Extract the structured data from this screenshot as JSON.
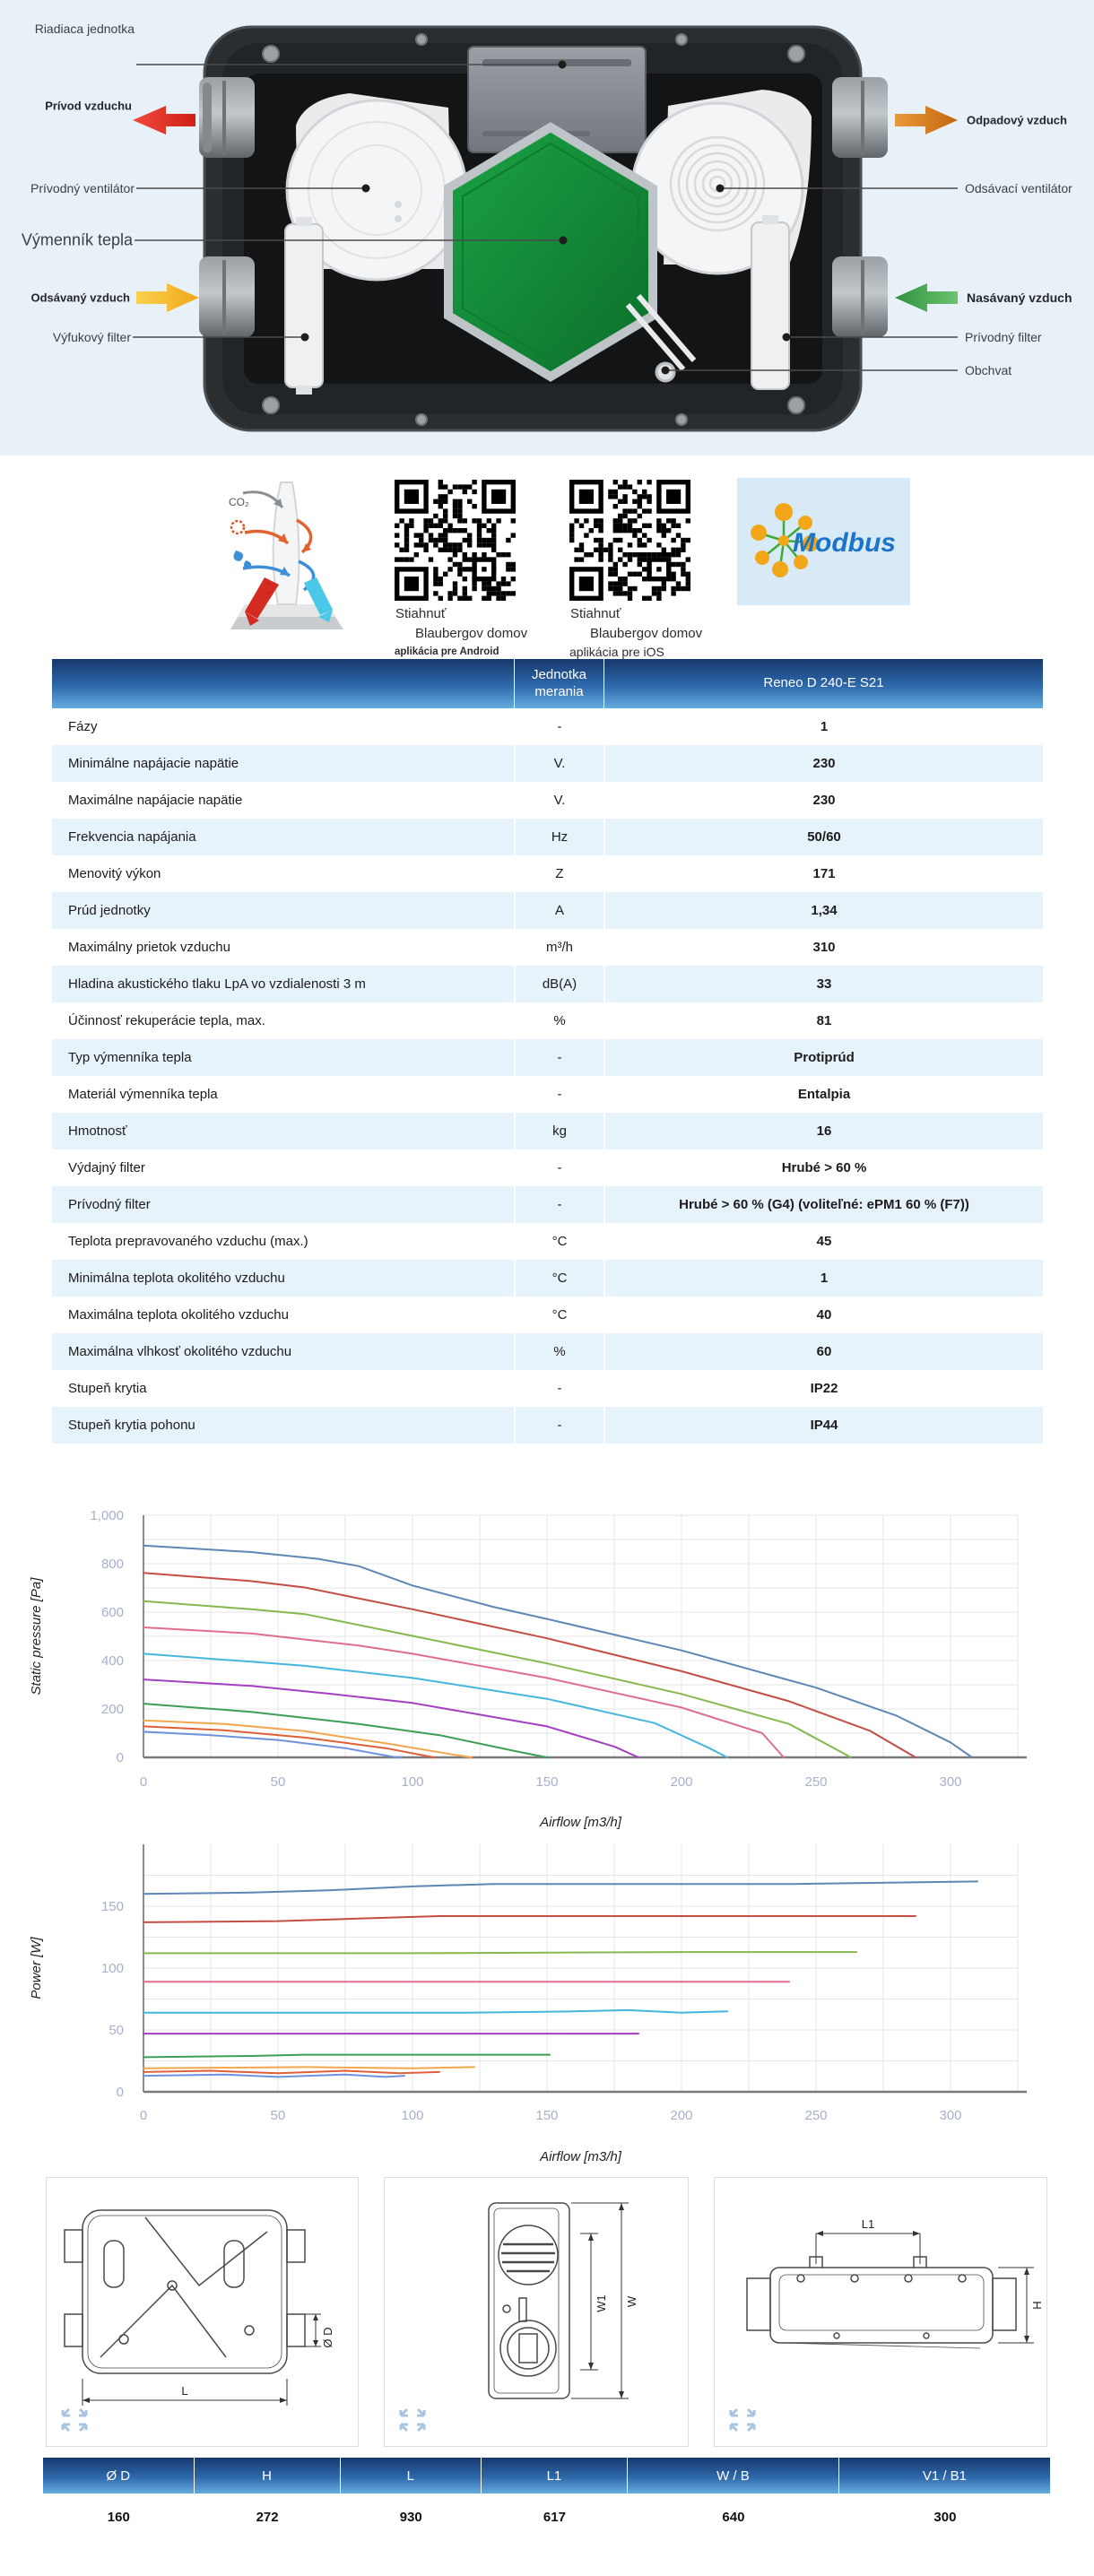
{
  "colors": {
    "hero_bg": "#e9f1f8",
    "table_header_top": "#16386c",
    "table_header_bottom": "#65acde",
    "row_alt": "#e7f3fb",
    "arrow_supply": "#e03026",
    "arrow_waste": "#d97c1e",
    "arrow_extract": "#f6bf2f",
    "arrow_intake": "#53b054",
    "exchanger_green": "#15923a",
    "tick_label": "#a7b0cb",
    "grid_line": "#e4e4e4"
  },
  "hero": {
    "left_labels": {
      "control_unit": "Riadiaca jednotka",
      "supply_air": "Prívod vzduchu",
      "supply_fan": "Prívodný ventilátor",
      "heat_exchanger": "Výmenník tepla",
      "extract_air": "Odsávaný vzduch",
      "exhaust_filter": "Výfukový filter"
    },
    "right_labels": {
      "waste_air": "Odpadový vzduch",
      "extract_fan": "Odsávací ventilátor",
      "intake_air": "Nasávaný vzduch",
      "supply_filter": "Prívodný filter",
      "bypass": "Obchvat"
    }
  },
  "apps": {
    "co2": "CO₂",
    "modbus": "Modbus",
    "qr_android": {
      "line1": "Stiahnuť",
      "line2": "Blaubergov domov",
      "line3": "aplikácia pre Android"
    },
    "qr_ios": {
      "line1": "Stiahnuť",
      "line2": "Blaubergov domov",
      "line3": "aplikácia pre iOS"
    }
  },
  "spec_table": {
    "header_param": "",
    "header_unit": "Jednotka merania",
    "header_model": "Reneo D 240-E S21",
    "rows": [
      {
        "p": "Fázy",
        "u": "-",
        "v": "1"
      },
      {
        "p": "Minimálne napájacie napätie",
        "u": "V.",
        "v": "230"
      },
      {
        "p": "Maximálne napájacie napätie",
        "u": "V.",
        "v": "230"
      },
      {
        "p": "Frekvencia napájania",
        "u": "Hz",
        "v": "50/60"
      },
      {
        "p": "Menovitý výkon",
        "u": "Z",
        "v": "171"
      },
      {
        "p": "Prúd jednotky",
        "u": "A",
        "v": "1,34"
      },
      {
        "p": "Maximálny prietok vzduchu",
        "u": "m³/h",
        "v": "310"
      },
      {
        "p": "Hladina akustického tlaku LpA vo vzdialenosti 3 m",
        "u": "dB(A)",
        "v": "33"
      },
      {
        "p": "Účinnosť rekuperácie tepla, max.",
        "u": "%",
        "v": "81"
      },
      {
        "p": "Typ výmenníka tepla",
        "u": "-",
        "v": "Protiprúd"
      },
      {
        "p": "Materiál výmenníka tepla",
        "u": "-",
        "v": "Entalpia"
      },
      {
        "p": "Hmotnosť",
        "u": "kg",
        "v": "16"
      },
      {
        "p": "Výdajný filter",
        "u": "-",
        "v": "Hrubé > 60 %"
      },
      {
        "p": "Prívodný filter",
        "u": "-",
        "v": "Hrubé > 60 % (G4) (voliteľné: ePM1 60 % (F7))"
      },
      {
        "p": "Teplota prepravovaného vzduchu (max.)",
        "u": "°C",
        "v": "45"
      },
      {
        "p": "Minimálna teplota okolitého vzduchu",
        "u": "°C",
        "v": "1"
      },
      {
        "p": "Maximálna teplota okolitého vzduchu",
        "u": "°C",
        "v": "40"
      },
      {
        "p": "Maximálna vlhkosť okolitého vzduchu",
        "u": "%",
        "v": "60"
      },
      {
        "p": "Stupeň krytia",
        "u": "-",
        "v": "IP22"
      },
      {
        "p": "Stupeň krytia pohonu",
        "u": "-",
        "v": "IP44"
      }
    ]
  },
  "chart_data": [
    {
      "type": "line",
      "xlabel": "Airflow [m3/h]",
      "ylabel": "Static pressure [Pa]",
      "xlim": [
        0,
        325
      ],
      "ylim": [
        0,
        1000
      ],
      "xticks": [
        0,
        50,
        100,
        150,
        200,
        250,
        300
      ],
      "yticks": [
        0,
        200,
        400,
        600,
        800,
        1000
      ],
      "ytick_labels": [
        "0",
        "200",
        "400",
        "600",
        "800",
        "1,000"
      ],
      "xgrid_step": 25,
      "ygrid_step": 100,
      "ygrid_max": 1000,
      "grid": true,
      "legend": "none",
      "series": [
        {
          "color": "#5e87b5",
          "points": [
            [
              0,
              875
            ],
            [
              40,
              848
            ],
            [
              65,
              820
            ],
            [
              80,
              790
            ],
            [
              100,
              710
            ],
            [
              130,
              622
            ],
            [
              150,
              572
            ],
            [
              200,
              442
            ],
            [
              250,
              288
            ],
            [
              280,
              172
            ],
            [
              300,
              62
            ],
            [
              308,
              0
            ]
          ]
        },
        {
          "color": "#c44e44",
          "points": [
            [
              0,
              762
            ],
            [
              40,
              728
            ],
            [
              60,
              702
            ],
            [
              100,
              612
            ],
            [
              150,
              492
            ],
            [
              200,
              356
            ],
            [
              240,
              232
            ],
            [
              270,
              110
            ],
            [
              287,
              0
            ]
          ]
        },
        {
          "color": "#86b84d",
          "points": [
            [
              0,
              645
            ],
            [
              40,
              612
            ],
            [
              60,
              592
            ],
            [
              100,
              502
            ],
            [
              150,
              388
            ],
            [
              200,
              262
            ],
            [
              240,
              138
            ],
            [
              263,
              0
            ]
          ]
        },
        {
          "color": "#df6e8d",
          "points": [
            [
              0,
              537
            ],
            [
              40,
              512
            ],
            [
              80,
              462
            ],
            [
              100,
              428
            ],
            [
              150,
              328
            ],
            [
              200,
              206
            ],
            [
              230,
              100
            ],
            [
              238,
              0
            ]
          ]
        },
        {
          "color": "#46b6de",
          "points": [
            [
              0,
              428
            ],
            [
              40,
              395
            ],
            [
              60,
              378
            ],
            [
              100,
              328
            ],
            [
              150,
              242
            ],
            [
              190,
              142
            ],
            [
              210,
              40
            ],
            [
              217,
              0
            ]
          ]
        },
        {
          "color": "#a33fc0",
          "points": [
            [
              0,
              322
            ],
            [
              40,
              295
            ],
            [
              70,
              262
            ],
            [
              100,
              225
            ],
            [
              150,
              128
            ],
            [
              175,
              45
            ],
            [
              184,
              0
            ]
          ]
        },
        {
          "color": "#3d9e55",
          "points": [
            [
              0,
              222
            ],
            [
              40,
              188
            ],
            [
              80,
              138
            ],
            [
              110,
              92
            ],
            [
              140,
              22
            ],
            [
              150,
              0
            ]
          ]
        },
        {
          "color": "#f2a64e",
          "points": [
            [
              0,
              153
            ],
            [
              30,
              138
            ],
            [
              60,
              108
            ],
            [
              90,
              58
            ],
            [
              115,
              12
            ],
            [
              122,
              0
            ]
          ]
        },
        {
          "color": "#df6038",
          "points": [
            [
              0,
              128
            ],
            [
              30,
              112
            ],
            [
              60,
              82
            ],
            [
              90,
              38
            ],
            [
              108,
              0
            ]
          ]
        },
        {
          "color": "#6e92dd",
          "points": [
            [
              0,
              106
            ],
            [
              25,
              92
            ],
            [
              50,
              72
            ],
            [
              75,
              38
            ],
            [
              93,
              2
            ],
            [
              96,
              0
            ]
          ]
        }
      ]
    },
    {
      "type": "line",
      "xlabel": "Airflow [m3/h]",
      "ylabel": "Power [W]",
      "xlim": [
        0,
        325
      ],
      "ylim": [
        0,
        200
      ],
      "xticks": [
        0,
        50,
        100,
        150,
        200,
        250,
        300
      ],
      "yticks": [
        0,
        50,
        100,
        150
      ],
      "ytick_labels": [
        "0",
        "50",
        "100",
        "150"
      ],
      "xgrid_step": 25,
      "ygrid_step": 25,
      "ygrid_max": 175,
      "grid": true,
      "legend": "none",
      "series": [
        {
          "color": "#5e87b5",
          "points": [
            [
              0,
              160
            ],
            [
              40,
              161
            ],
            [
              70,
              163
            ],
            [
              100,
              166
            ],
            [
              130,
              168
            ],
            [
              180,
              168
            ],
            [
              240,
              168
            ],
            [
              310,
              170
            ]
          ]
        },
        {
          "color": "#c44e44",
          "points": [
            [
              0,
              137
            ],
            [
              50,
              138
            ],
            [
              80,
              140
            ],
            [
              110,
              142
            ],
            [
              160,
              142
            ],
            [
              240,
              142
            ],
            [
              287,
              142
            ]
          ]
        },
        {
          "color": "#86b84d",
          "points": [
            [
              0,
              112
            ],
            [
              100,
              112
            ],
            [
              200,
              113
            ],
            [
              265,
              113
            ]
          ]
        },
        {
          "color": "#df6e8d",
          "points": [
            [
              0,
              89
            ],
            [
              120,
              89
            ],
            [
              240,
              89
            ]
          ]
        },
        {
          "color": "#46b6de",
          "points": [
            [
              0,
              64
            ],
            [
              120,
              64
            ],
            [
              160,
              65
            ],
            [
              180,
              66
            ],
            [
              200,
              64
            ],
            [
              217,
              65
            ]
          ]
        },
        {
          "color": "#a33fc0",
          "points": [
            [
              0,
              47
            ],
            [
              100,
              47
            ],
            [
              184,
              47
            ]
          ]
        },
        {
          "color": "#3d9e55",
          "points": [
            [
              0,
              28
            ],
            [
              40,
              29
            ],
            [
              60,
              30
            ],
            [
              100,
              30
            ],
            [
              151,
              30
            ]
          ]
        },
        {
          "color": "#f2a64e",
          "points": [
            [
              0,
              19
            ],
            [
              60,
              20
            ],
            [
              100,
              19
            ],
            [
              123,
              20
            ]
          ]
        },
        {
          "color": "#df6038",
          "points": [
            [
              0,
              16
            ],
            [
              25,
              17
            ],
            [
              50,
              15
            ],
            [
              75,
              17
            ],
            [
              95,
              15
            ],
            [
              110,
              16
            ]
          ]
        },
        {
          "color": "#6e92dd",
          "points": [
            [
              0,
              13
            ],
            [
              30,
              14
            ],
            [
              50,
              12
            ],
            [
              75,
              14
            ],
            [
              90,
              12
            ],
            [
              97,
              13
            ]
          ]
        }
      ]
    }
  ],
  "drawings": {
    "dim_d": "Ø D",
    "dim_l": "L",
    "dim_w1": "W1",
    "dim_w": "W",
    "dim_l1": "L1",
    "dim_h": "H"
  },
  "dims_table": {
    "headers": [
      "Ø D",
      "H",
      "L",
      "L1",
      "W / B",
      "V1 / B1"
    ],
    "values": [
      "160",
      "272",
      "930",
      "617",
      "640",
      "300"
    ]
  }
}
